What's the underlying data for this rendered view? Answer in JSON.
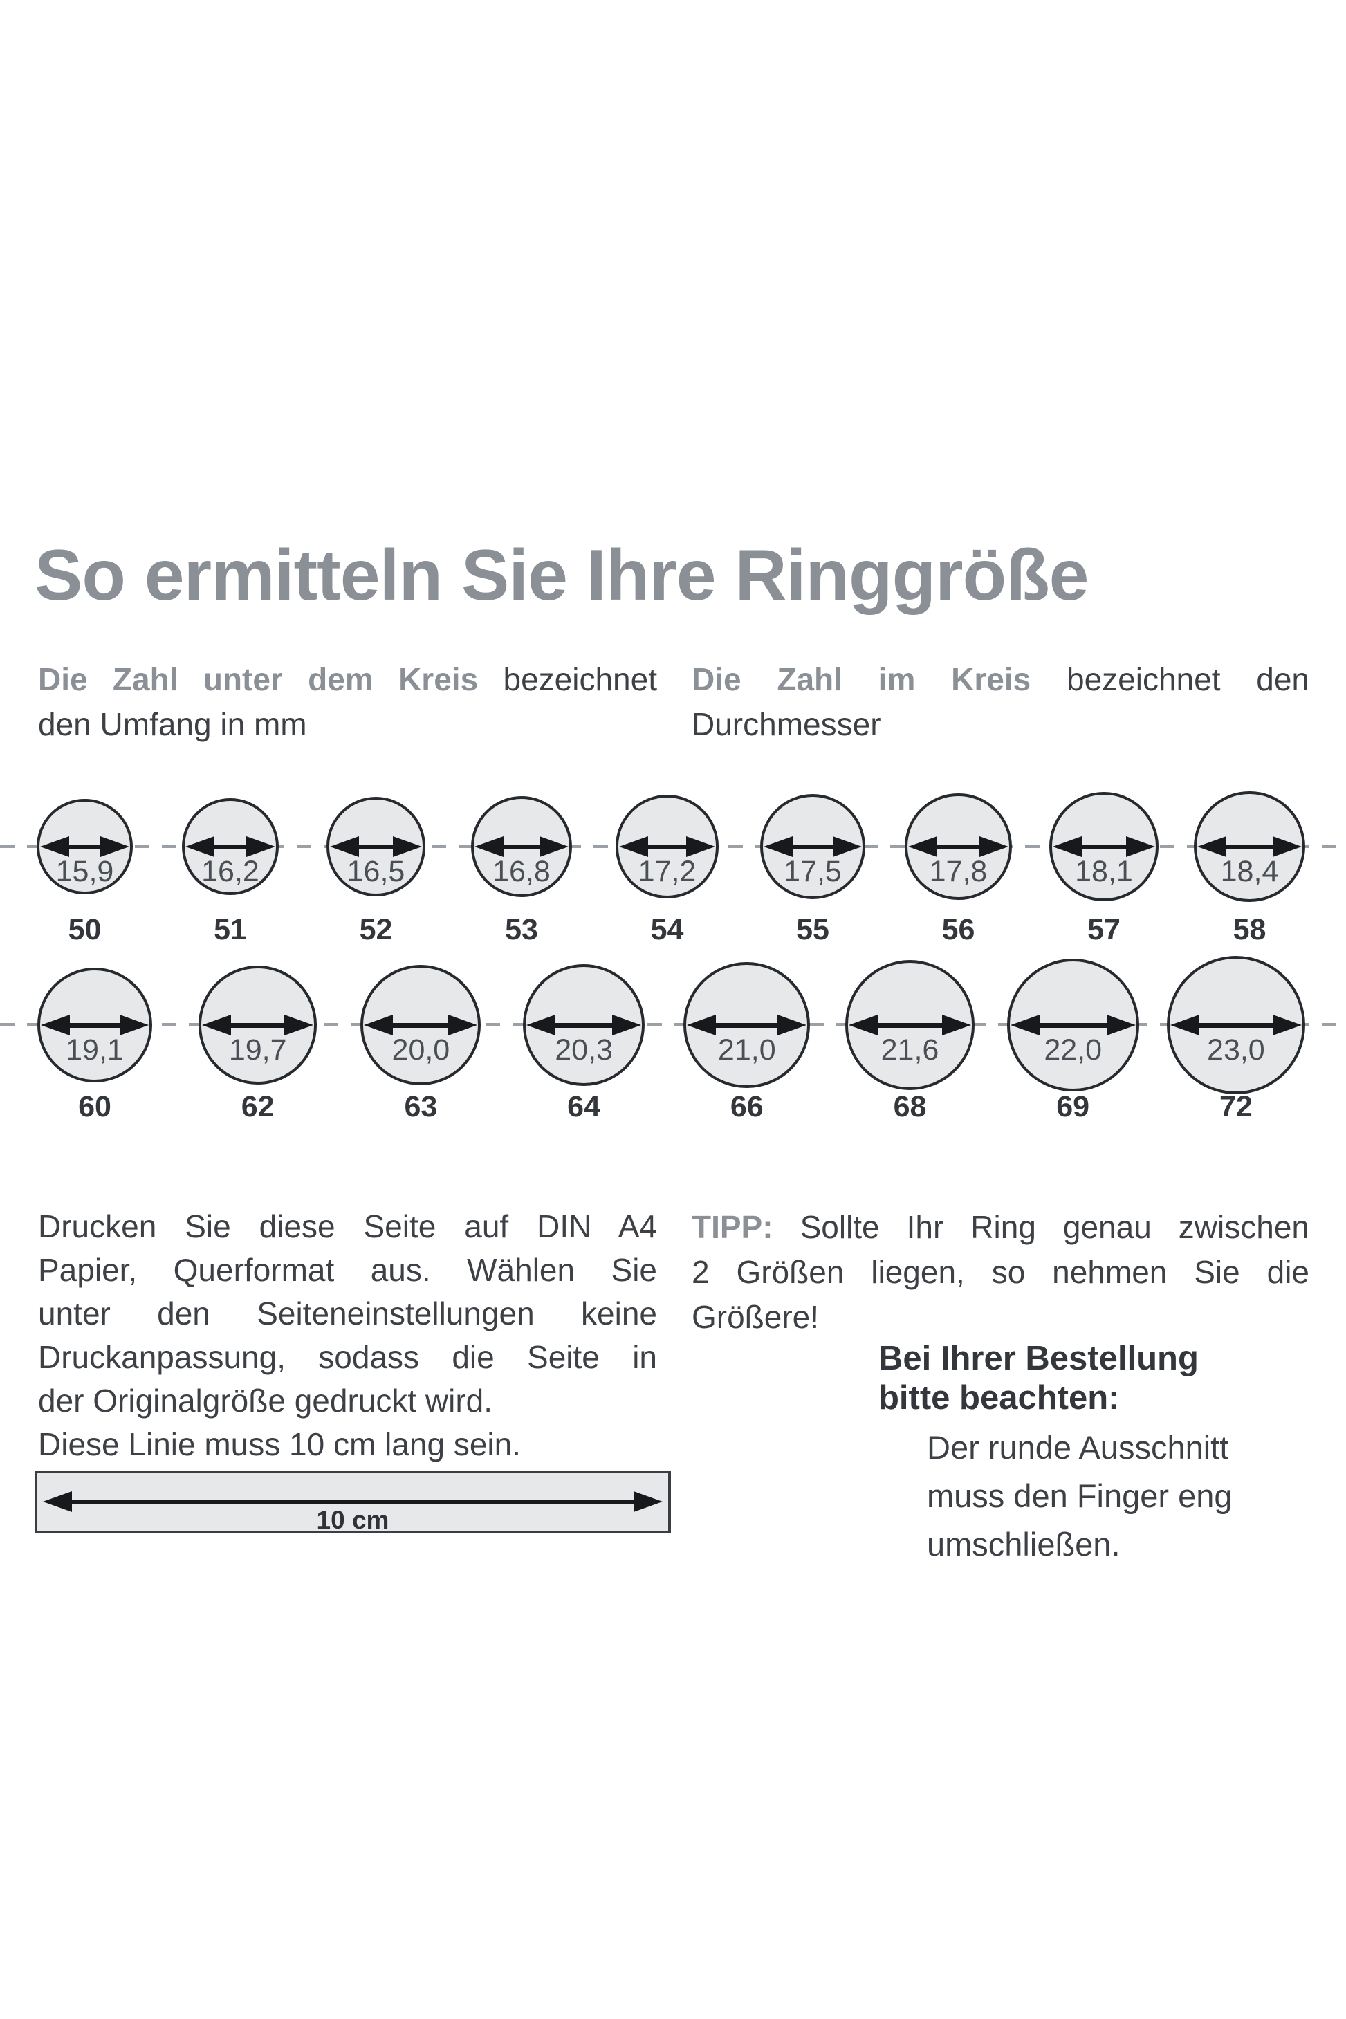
{
  "title": "So ermitteln Sie Ihre Ringgröße",
  "intro": {
    "left": {
      "highlight": "Die Zahl unter dem Kreis",
      "rest": "bezeichnet",
      "line2": "den Umfang in mm"
    },
    "right": {
      "highlight": "Die Zahl im Kreis",
      "rest": "bezeichnet den",
      "line2": "Durchmesser"
    }
  },
  "rows": [
    {
      "circles": [
        {
          "diameter_mm": "15,9",
          "circumference": "50"
        },
        {
          "diameter_mm": "16,2",
          "circumference": "51"
        },
        {
          "diameter_mm": "16,5",
          "circumference": "52"
        },
        {
          "diameter_mm": "16,8",
          "circumference": "53"
        },
        {
          "diameter_mm": "17,2",
          "circumference": "54"
        },
        {
          "diameter_mm": "17,5",
          "circumference": "55"
        },
        {
          "diameter_mm": "17,8",
          "circumference": "56"
        },
        {
          "diameter_mm": "18,1",
          "circumference": "57"
        },
        {
          "diameter_mm": "18,4",
          "circumference": "58"
        }
      ]
    },
    {
      "circles": [
        {
          "diameter_mm": "19,1",
          "circumference": "60"
        },
        {
          "diameter_mm": "19,7",
          "circumference": "62"
        },
        {
          "diameter_mm": "20,0",
          "circumference": "63"
        },
        {
          "diameter_mm": "20,3",
          "circumference": "64"
        },
        {
          "diameter_mm": "21,0",
          "circumference": "66"
        },
        {
          "diameter_mm": "21,6",
          "circumference": "68"
        },
        {
          "diameter_mm": "22,0",
          "circumference": "69"
        },
        {
          "diameter_mm": "23,0",
          "circumference": "72"
        }
      ]
    }
  ],
  "print_note": {
    "justified_lines": [
      "Drucken Sie diese Seite auf DIN A4",
      "Papier, Querformat aus. Wählen Sie",
      "unter den Seiteneinstellungen keine",
      "Druckanpassung, sodass die Seite in"
    ],
    "plain_line1": "der Originalgröße gedruckt wird.",
    "plain_line2": "Diese Linie muss 10 cm lang sein."
  },
  "ruler": {
    "label": "10 cm"
  },
  "tip": {
    "label": "TIPP:",
    "line1_rest": "Sollte Ihr Ring genau zwischen",
    "line2": "2 Größen liegen, so nehmen Sie die",
    "line3": "Größere!"
  },
  "order_note": {
    "heading_line1": "Bei Ihrer Bestellung",
    "heading_line2": "bitte beachten:",
    "body_line1": "Der runde Ausschnitt",
    "body_line2": "muss den Finger eng",
    "body_line3": "umschließen."
  },
  "colors": {
    "accent_gray": "#8a9096",
    "text_dark": "#3d4146",
    "circle_fill": "#e6e8ea",
    "circle_stroke": "#26292e",
    "arrow_black": "#17191c",
    "dash_gray": "#9aa0a6"
  }
}
